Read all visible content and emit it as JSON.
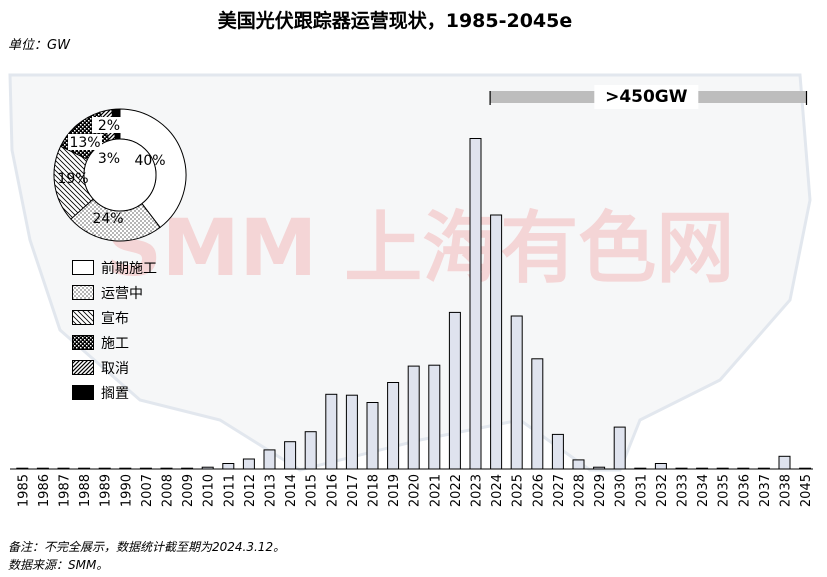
{
  "title": "美国光伏跟踪器运营现状，1985-2045e",
  "unit_label": "单位：GW",
  "note": "备注：不完全展示，数据统计截至期为2024.3.12。",
  "source": "数据来源：SMM。",
  "watermark": "SMM 上海有色网",
  "colors": {
    "bar_fill": "#dfe3ee",
    "bar_stroke": "#000000",
    "bracket": "#bdbdbd"
  },
  "chart_data": [
    {
      "type": "bar",
      "title": "美国光伏跟踪器运营现状，1985-2045e",
      "ylabel": "单位：GW",
      "categories": [
        "1985",
        "1986",
        "1987",
        "1988",
        "1989",
        "1990",
        "2007",
        "2008",
        "2009",
        "2010",
        "2011",
        "2012",
        "2013",
        "2014",
        "2015",
        "2016",
        "2017",
        "2018",
        "2019",
        "2020",
        "2021",
        "2022",
        "2023",
        "2024",
        "2025",
        "2026",
        "2027",
        "2028",
        "2029",
        "2030",
        "2031",
        "2032",
        "2033",
        "2034",
        "2035",
        "2036",
        "2037",
        "2038",
        "2045"
      ],
      "values": [
        0.1,
        0.1,
        0.1,
        0.1,
        0.1,
        0.1,
        0.1,
        0.1,
        0.3,
        2,
        6,
        11,
        21,
        30,
        41,
        82,
        81,
        73,
        95,
        113,
        114,
        172,
        363,
        279,
        168,
        121,
        38,
        10,
        2,
        46,
        0.2,
        6,
        0.2,
        0.2,
        0.2,
        0.2,
        0.2,
        14,
        0.2
      ],
      "ylim": [
        0,
        380
      ],
      "annotation": ">450GW",
      "annotation_span": [
        "2024",
        "2038"
      ]
    },
    {
      "type": "pie",
      "labels": [
        "前期施工",
        "运营中",
        "宣布",
        "施工",
        "取消",
        "搁置"
      ],
      "values": [
        40,
        24,
        19,
        13,
        3,
        2
      ],
      "value_labels": [
        "40%",
        "24%",
        "19%",
        "13%",
        "3%",
        "2%"
      ],
      "patterns": [
        "white",
        "dots",
        "diagonal",
        "checker",
        "hatch",
        "black"
      ],
      "legend": "left"
    }
  ]
}
